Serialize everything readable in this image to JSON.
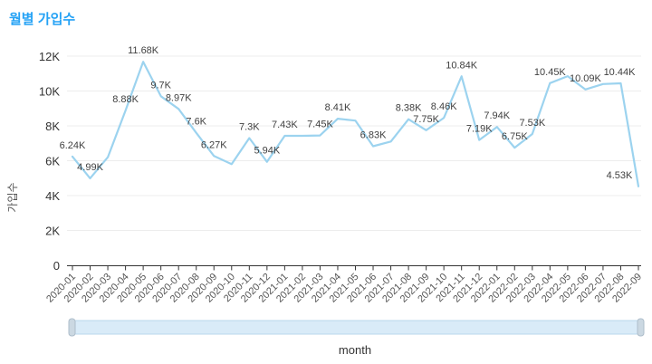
{
  "chart_data": {
    "type": "line",
    "title": "월별 가입수",
    "xlabel": "month",
    "ylabel": "가입수",
    "ylim": [
      0,
      12000
    ],
    "y_ticks": [
      "0",
      "2K",
      "4K",
      "6K",
      "8K",
      "10K",
      "12K"
    ],
    "grid": "horizontal-only",
    "legend_position": "none",
    "categories": [
      "2020-01",
      "2020-02",
      "2020-03",
      "2020-04",
      "2020-05",
      "2020-06",
      "2020-07",
      "2020-08",
      "2020-09",
      "2020-10",
      "2020-11",
      "2020-12",
      "2021-01",
      "2021-02",
      "2021-03",
      "2021-04",
      "2021-05",
      "2021-06",
      "2021-07",
      "2021-08",
      "2021-09",
      "2021-10",
      "2021-11",
      "2021-12",
      "2022-01",
      "2022-02",
      "2022-03",
      "2022-04",
      "2022-05",
      "2022-06",
      "2022-07",
      "2022-08",
      "2022-09"
    ],
    "values": [
      6240,
      4990,
      6200,
      8880,
      11680,
      9700,
      8970,
      7600,
      6270,
      5800,
      7300,
      5940,
      7430,
      7430,
      7450,
      8410,
      8300,
      6830,
      7100,
      8380,
      7750,
      8460,
      10840,
      7190,
      7940,
      6750,
      7530,
      10450,
      10850,
      10090,
      10400,
      10440,
      4530
    ],
    "point_labels": [
      "6.24K",
      "4.99K",
      "",
      "8.88K",
      "11.68K",
      "9.7K",
      "8.97K",
      "7.6K",
      "6.27K",
      "",
      "7.3K",
      "5.94K",
      "7.43K",
      "",
      "7.45K",
      "8.41K",
      "",
      "6.83K",
      "",
      "8.38K",
      "7.75K",
      "8.46K",
      "10.84K",
      "7.19K",
      "7.94K",
      "6.75K",
      "7.53K",
      "10.45K",
      "",
      "10.09K",
      "",
      "10.44K",
      "4.53K"
    ],
    "has_range_scrollbar": true
  },
  "colors": {
    "title": "#25a2f5",
    "series_line": "#9cd3ef",
    "grid_line": "#ededed",
    "axis_line": "#333333",
    "y_tick_label": "#333333",
    "x_tick_label": "#565656",
    "data_label": "#404040",
    "scrollbar_fill": "#d9ebf8",
    "scrollbar_border": "#b9d7ec",
    "scrollbar_handle_fill": "#cbd8e2",
    "scrollbar_handle_border": "#aebecb"
  }
}
